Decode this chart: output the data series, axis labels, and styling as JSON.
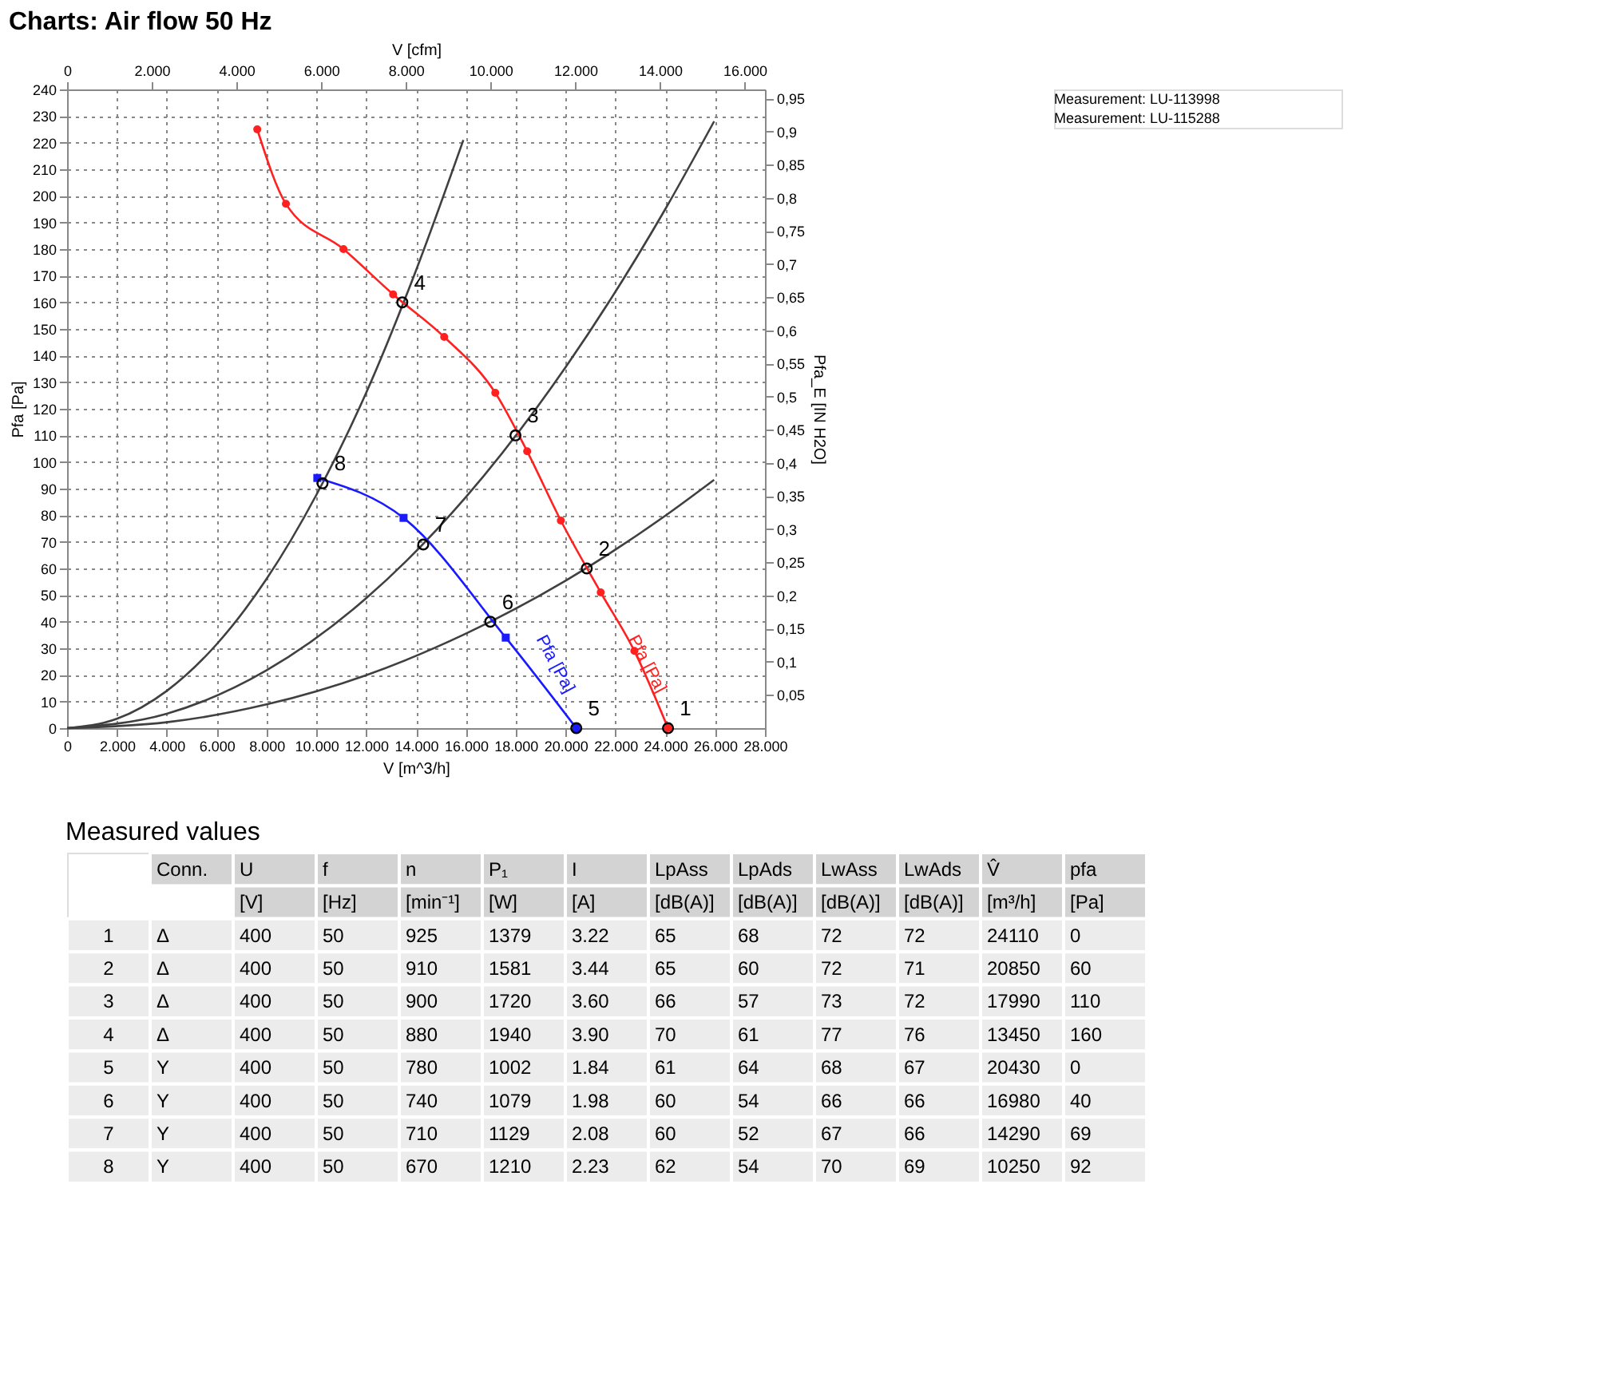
{
  "chart_data": [
    {
      "type": "line",
      "title": "Charts: Air flow 50 Hz",
      "xlabel": "V [m^3/h]",
      "ylabel": "Pfa [Pa]",
      "x2label": "V [cfm]",
      "y2label": "Pfa_E [IN H2O]",
      "xlim": [
        0,
        28000
      ],
      "xticks": [
        0,
        {
          "value": 2000,
          "label": "2.000"
        },
        {
          "value": 4000,
          "label": "4.000"
        },
        {
          "value": 6000,
          "label": "6.000"
        },
        {
          "value": 8000,
          "label": "8.000"
        },
        {
          "value": 10000,
          "label": "10.000"
        },
        {
          "value": 12000,
          "label": "12.000"
        },
        {
          "value": 14000,
          "label": "14.000"
        },
        {
          "value": 16000,
          "label": "16.000"
        },
        {
          "value": 18000,
          "label": "18.000"
        },
        {
          "value": 20000,
          "label": "20.000"
        },
        {
          "value": 22000,
          "label": "22.000"
        },
        {
          "value": 24000,
          "label": "24.000"
        },
        {
          "value": 26000,
          "label": "26.000"
        },
        {
          "value": 28000,
          "label": "28.000"
        }
      ],
      "ylim": [
        0,
        240
      ],
      "yticks": [
        0,
        10,
        20,
        30,
        40,
        50,
        60,
        70,
        80,
        90,
        100,
        110,
        120,
        130,
        140,
        150,
        160,
        170,
        180,
        190,
        200,
        210,
        220,
        230,
        240
      ],
      "x2lim": [
        0,
        16480
      ],
      "x2ticks": [
        0,
        {
          "value": 2000,
          "label": "2.000"
        },
        {
          "value": 4000,
          "label": "4.000"
        },
        {
          "value": 6000,
          "label": "6.000"
        },
        {
          "value": 8000,
          "label": "8.000"
        },
        {
          "value": 10000,
          "label": "10.000"
        },
        {
          "value": 12000,
          "label": "12.000"
        },
        {
          "value": 14000,
          "label": "14.000"
        },
        {
          "value": 16000,
          "label": "16.000"
        }
      ],
      "y2lim": [
        0,
        0.9636
      ],
      "y2ticks": [
        {
          "value": 0.05,
          "label": "0,05"
        },
        {
          "value": 0.1,
          "label": "0,1"
        },
        {
          "value": 0.15,
          "label": "0,15"
        },
        {
          "value": 0.2,
          "label": "0,2"
        },
        {
          "value": 0.25,
          "label": "0,25"
        },
        {
          "value": 0.3,
          "label": "0,3"
        },
        {
          "value": 0.35,
          "label": "0,35"
        },
        {
          "value": 0.4,
          "label": "0,4"
        },
        {
          "value": 0.45,
          "label": "0,45"
        },
        {
          "value": 0.5,
          "label": "0,5"
        },
        {
          "value": 0.55,
          "label": "0,55"
        },
        {
          "value": 0.6,
          "label": "0,6"
        },
        {
          "value": 0.65,
          "label": "0,65"
        },
        {
          "value": 0.7,
          "label": "0,7"
        },
        {
          "value": 0.75,
          "label": "0,75"
        },
        {
          "value": 0.8,
          "label": "0,8"
        },
        {
          "value": 0.85,
          "label": "0,85"
        },
        {
          "value": 0.9,
          "label": "0,9"
        },
        {
          "value": 0.95,
          "label": "0,95"
        }
      ],
      "grid": true,
      "annotations": [
        "Measurement: LU-113998",
        "Measurement: LU-115288",
        {
          "text": "1",
          "x": 24110,
          "y": 0
        },
        {
          "text": "2",
          "x": 20850,
          "y": 60
        },
        {
          "text": "3",
          "x": 17990,
          "y": 110
        },
        {
          "text": "4",
          "x": 13450,
          "y": 160
        },
        {
          "text": "5",
          "x": 20430,
          "y": 0
        },
        {
          "text": "6",
          "x": 16980,
          "y": 40
        },
        {
          "text": "7",
          "x": 14290,
          "y": 69
        },
        {
          "text": "8",
          "x": 10250,
          "y": 92
        }
      ],
      "series": [
        {
          "type": "line",
          "color": "#404040",
          "marker": "none",
          "x": [
            0,
            2000,
            4000,
            6000,
            8000,
            10000,
            12000,
            14000,
            15900
          ],
          "values": [
            0,
            3.5,
            14,
            31.5,
            56,
            87.6,
            126,
            172,
            221
          ]
        },
        {
          "type": "line",
          "color": "#404040",
          "marker": "none",
          "x": [
            0,
            4000,
            8000,
            12000,
            16000,
            20000,
            24000,
            25960
          ],
          "values": [
            0,
            5.4,
            21.7,
            48.8,
            86.8,
            135.6,
            195,
            228
          ]
        },
        {
          "type": "line",
          "color": "#404040",
          "marker": "none",
          "x": [
            0,
            4000,
            8000,
            12000,
            16000,
            20000,
            24000,
            25960
          ],
          "values": [
            0,
            2.2,
            8.9,
            19.9,
            35.5,
            55.4,
            79.8,
            93.3
          ]
        },
        {
          "type": "line",
          "name": "Pfa [Pa]",
          "color": "#ff2020",
          "marker": "circle",
          "x": [
            7630,
            8780,
            11090,
            13080,
            15130,
            17180,
            18460,
            19810,
            21410,
            22760,
            24110
          ],
          "values": [
            225,
            197,
            180,
            163,
            147,
            126,
            104,
            78,
            51,
            29,
            0
          ]
        },
        {
          "type": "line",
          "name": "Pfa [Pa]",
          "color": "#1a1aff",
          "marker": "square",
          "x": [
            10040,
            13500,
            17600,
            20430
          ],
          "values": [
            94,
            79,
            34,
            0
          ]
        },
        {
          "type": "scatter",
          "color": "#000000",
          "marker": "circle",
          "x": [
            24110,
            20850,
            17990,
            13450,
            20430,
            16980,
            14290,
            10250
          ],
          "values": [
            0,
            60,
            110,
            160,
            0,
            40,
            69,
            92
          ]
        }
      ]
    },
    {
      "type": "other",
      "title": "Measured values",
      "annotations": [
        null,
        "Conn.",
        "U",
        "f",
        "n",
        "P₁",
        "I",
        "LpAss",
        "LpAds",
        "LwAss",
        "LwAds",
        "V̂",
        "pfa",
        null,
        null,
        "[V]",
        "[Hz]",
        "[min⁻¹]",
        "[W]",
        "[A]",
        "[dB(A)]",
        "[dB(A)]",
        "[dB(A)]",
        "[dB(A)]",
        "[m³/h]",
        "[Pa]",
        "1",
        "Δ",
        "400",
        "50",
        "925",
        "1379",
        "3.22",
        "65",
        "68",
        "72",
        "72",
        "24110",
        "0",
        "2",
        "Δ",
        "400",
        "50",
        "910",
        "1581",
        "3.44",
        "65",
        "60",
        "72",
        "71",
        "20850",
        "60",
        "3",
        "Δ",
        "400",
        "50",
        "900",
        "1720",
        "3.60",
        "66",
        "57",
        "73",
        "72",
        "17990",
        "110",
        "4",
        "Δ",
        "400",
        "50",
        "880",
        "1940",
        "3.90",
        "70",
        "61",
        "77",
        "76",
        "13450",
        "160",
        "5",
        "Y",
        "400",
        "50",
        "780",
        "1002",
        "1.84",
        "61",
        "64",
        "68",
        "67",
        "20430",
        "0",
        "6",
        "Y",
        "400",
        "50",
        "740",
        "1079",
        "1.98",
        "60",
        "54",
        "66",
        "66",
        "16980",
        "40",
        "7",
        "Y",
        "400",
        "50",
        "710",
        "1129",
        "2.08",
        "60",
        "52",
        "67",
        "66",
        "14290",
        "69",
        "8",
        "Y",
        "400",
        "50",
        "670",
        "1210",
        "2.23",
        "62",
        "54",
        "70",
        "69",
        "10250",
        "92"
      ]
    }
  ]
}
